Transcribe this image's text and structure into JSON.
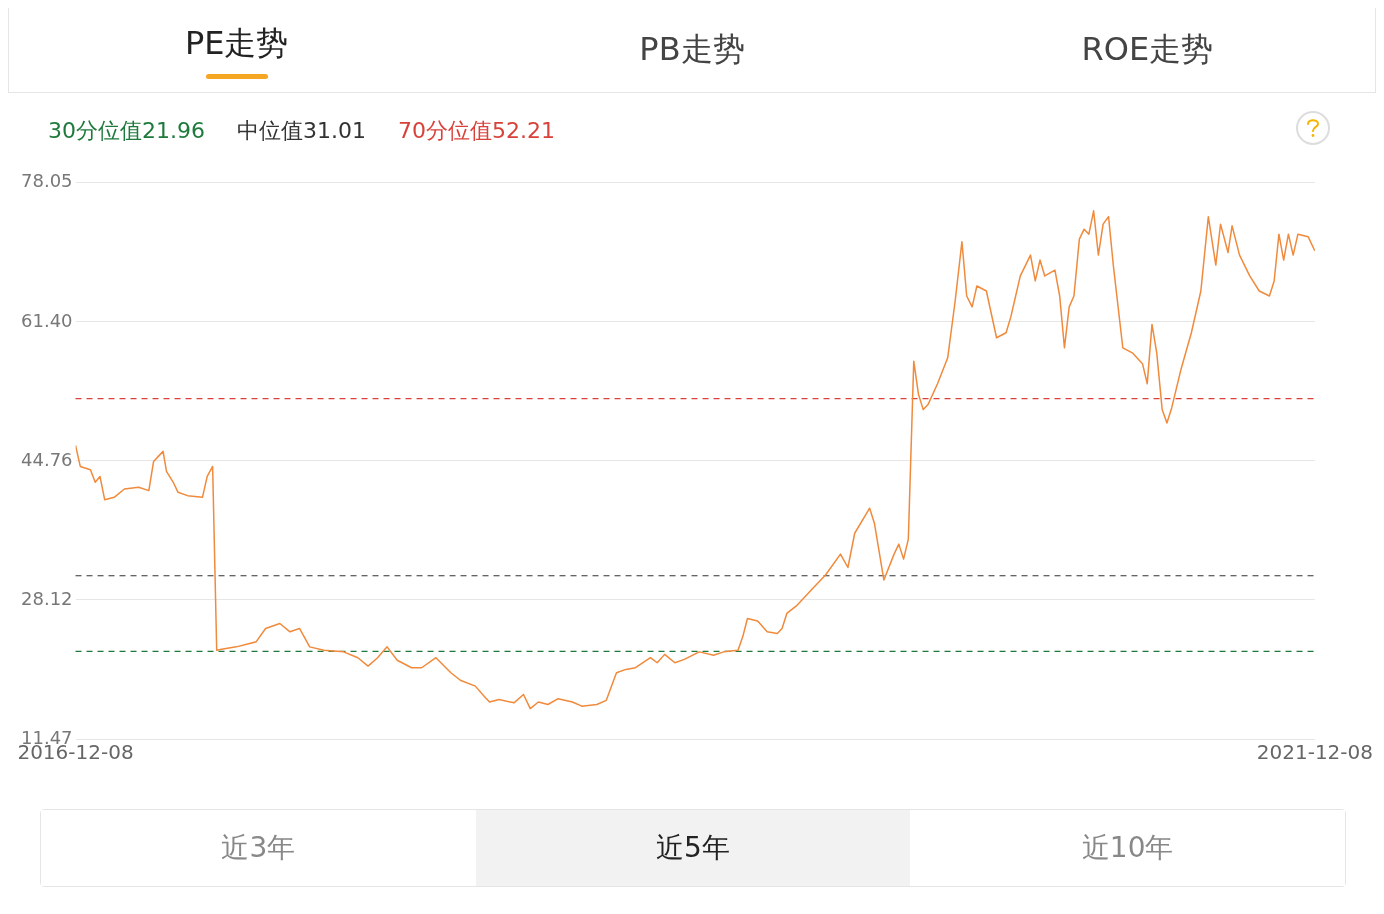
{
  "chart_data": {
    "type": "line",
    "annotations": [
      "PE走势",
      "PB走势",
      "ROE走势",
      "近3年",
      "近5年",
      "近10年"
    ],
    "xlim": [
      "2016-12-08",
      "2021-12-08"
    ],
    "xticks": [
      "2016-12-08",
      "2021-12-08"
    ],
    "ylim": [
      11.47,
      78.05
    ],
    "yticks": [
      11.47,
      28.12,
      44.76,
      {
        "value": 61.4,
        "label": "61.40"
      },
      78.05
    ],
    "grid": "y",
    "line_style": "solid",
    "ref_lines": [
      {
        "axis": "y",
        "value": 21.96,
        "label": "30分位值21.96",
        "color": "#1e7a3c",
        "line_style": "dashed"
      },
      {
        "axis": "y",
        "value": 31.01,
        "label": "中位值31.01",
        "color": "#333333",
        "line_style": "dashed"
      },
      {
        "axis": "y",
        "value": 52.21,
        "label": "70分位值52.21",
        "color": "#d9423a",
        "line_style": "dashed"
      }
    ],
    "series": [
      {
        "color": "#f08a3c",
        "x": [
          "2016-12-08",
          "2016-12-15",
          "2016-12-30",
          "2017-01-06",
          "2017-01-13",
          "2017-01-20",
          "2017-02-03",
          "2017-02-18",
          "2017-03-11",
          "2017-03-26",
          "2017-04-02",
          "2017-04-09",
          "2017-04-16",
          "2017-04-21",
          "2017-05-01",
          "2017-05-08",
          "2017-05-22",
          "2017-06-13",
          "2017-06-20",
          "2017-06-28",
          "2017-07-04",
          "2017-07-11",
          "2017-08-02",
          "2017-08-31",
          "2017-09-14",
          "2017-10-05",
          "2017-10-20",
          "2017-11-03",
          "2017-11-18",
          "2017-12-09",
          "2018-01-07",
          "2018-01-28",
          "2018-02-12",
          "2018-02-26",
          "2018-03-12",
          "2018-03-27",
          "2018-04-17",
          "2018-05-02",
          "2018-05-23",
          "2018-06-14",
          "2018-06-28",
          "2018-07-20",
          "2018-08-03",
          "2018-08-10",
          "2018-08-24",
          "2018-09-15",
          "2018-09-29",
          "2018-10-09",
          "2018-10-21",
          "2018-11-04",
          "2018-11-19",
          "2018-12-10",
          "2018-12-24",
          "2019-01-15",
          "2019-01-29",
          "2019-02-13",
          "2019-02-27",
          "2019-03-13",
          "2019-04-04",
          "2019-04-14",
          "2019-04-25",
          "2019-05-10",
          "2019-05-24",
          "2019-06-15",
          "2019-07-06",
          "2019-07-21",
          "2019-08-11",
          "2019-08-18",
          "2019-08-25",
          "2019-09-09",
          "2019-09-23",
          "2019-10-08",
          "2019-10-15",
          "2019-10-22",
          "2019-11-05",
          "2019-11-27",
          "2019-12-18",
          "2020-01-09",
          "2020-01-20",
          "2020-01-30",
          "2020-02-21",
          "2020-02-28",
          "2020-03-13",
          "2020-03-28",
          "2020-04-04",
          "2020-04-11",
          "2020-04-18",
          "2020-04-26",
          "2020-05-03",
          "2020-05-10",
          "2020-05-17",
          "2020-05-31",
          "2020-06-15",
          "2020-06-26",
          "2020-07-06",
          "2020-07-13",
          "2020-07-21",
          "2020-07-28",
          "2020-08-11",
          "2020-08-26",
          "2020-09-09",
          "2020-09-16",
          "2020-09-30",
          "2020-10-15",
          "2020-10-22",
          "2020-10-29",
          "2020-11-05",
          "2020-11-20",
          "2020-11-27",
          "2020-12-04",
          "2020-12-11",
          "2020-12-18",
          "2020-12-26",
          "2021-01-02",
          "2021-01-09",
          "2021-01-16",
          "2021-01-23",
          "2021-01-30",
          "2021-02-07",
          "2021-02-14",
          "2021-02-28",
          "2021-03-14",
          "2021-03-29",
          "2021-04-05",
          "2021-04-12",
          "2021-04-19",
          "2021-04-27",
          "2021-05-04",
          "2021-05-11",
          "2021-05-25",
          "2021-06-09",
          "2021-06-23",
          "2021-07-04",
          "2021-07-15",
          "2021-07-22",
          "2021-08-02",
          "2021-08-08",
          "2021-08-19",
          "2021-09-03",
          "2021-09-17",
          "2021-10-02",
          "2021-10-09",
          "2021-10-16",
          "2021-10-23",
          "2021-10-30",
          "2021-11-06",
          "2021-11-13",
          "2021-11-28",
          "2021-12-08"
        ],
        "values": [
          46.6,
          44.1,
          43.7,
          42.2,
          42.9,
          40.1,
          40.4,
          41.4,
          41.6,
          41.2,
          44.7,
          45.3,
          45.9,
          43.5,
          42.2,
          41.0,
          40.6,
          40.4,
          42.9,
          44.1,
          22.1,
          22.2,
          22.5,
          23.1,
          24.7,
          25.3,
          24.3,
          24.7,
          22.5,
          22.1,
          21.9,
          21.2,
          20.2,
          21.2,
          22.5,
          20.9,
          20.0,
          20.0,
          21.2,
          19.4,
          18.5,
          17.8,
          16.5,
          15.9,
          16.2,
          15.8,
          16.8,
          15.1,
          15.9,
          15.6,
          16.3,
          15.9,
          15.4,
          15.6,
          16.1,
          19.4,
          19.8,
          20.0,
          21.2,
          20.6,
          21.6,
          20.6,
          21.0,
          21.9,
          21.5,
          21.9,
          22.1,
          23.7,
          25.9,
          25.6,
          24.3,
          24.1,
          24.7,
          26.5,
          27.4,
          29.3,
          31.1,
          33.6,
          32.0,
          36.1,
          39.1,
          37.3,
          30.5,
          33.6,
          34.8,
          33.0,
          35.4,
          56.7,
          52.7,
          50.9,
          51.5,
          54.0,
          57.1,
          63.9,
          71.0,
          64.5,
          63.2,
          65.7,
          65.1,
          59.5,
          60.1,
          62.0,
          66.9,
          69.4,
          66.3,
          68.8,
          66.9,
          67.6,
          64.5,
          58.3,
          63.2,
          64.5,
          71.3,
          72.5,
          71.9,
          74.7,
          69.4,
          73.1,
          74.0,
          68.2,
          58.3,
          57.7,
          56.4,
          54.0,
          61.1,
          57.7,
          50.9,
          49.3,
          51.1,
          55.8,
          60.1,
          65.1,
          74.0,
          68.2,
          73.1,
          69.7,
          72.9,
          69.4,
          66.9,
          65.1,
          64.5,
          66.3,
          71.9,
          68.8,
          71.9,
          69.4,
          71.9,
          71.6,
          69.9
        ]
      }
    ]
  }
}
